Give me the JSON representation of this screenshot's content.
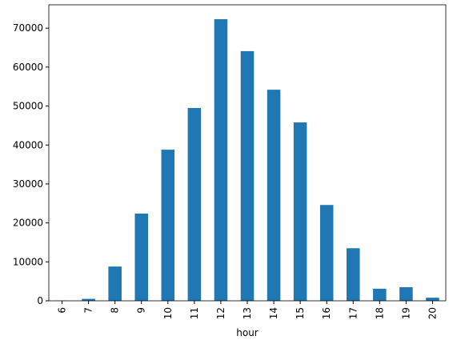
{
  "chart_data": {
    "type": "bar",
    "x_label": "hour",
    "categories": [
      "6",
      "7",
      "8",
      "9",
      "10",
      "11",
      "12",
      "13",
      "14",
      "15",
      "16",
      "17",
      "18",
      "19",
      "20"
    ],
    "values": [
      50,
      500,
      8800,
      22400,
      38800,
      49500,
      72300,
      64100,
      54200,
      45800,
      24600,
      13500,
      3100,
      3500,
      800
    ],
    "color": "#1f77b4",
    "ylim": [
      0,
      76000
    ],
    "yticks": [
      0,
      10000,
      20000,
      30000,
      40000,
      50000,
      60000,
      70000
    ],
    "grid": false
  }
}
